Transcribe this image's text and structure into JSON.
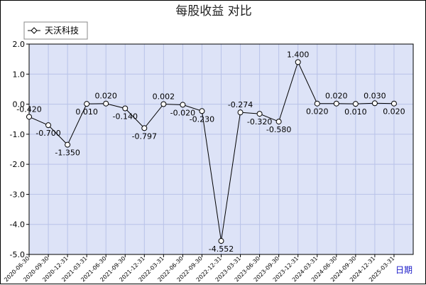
{
  "chart_data": {
    "type": "line",
    "title": "每股收益  对比",
    "xlabel": "日期",
    "ylabel": "",
    "ylim": [
      -5.0,
      2.0
    ],
    "yticks": [
      "2.0",
      "1.0",
      "0.0",
      "-1.0",
      "-2.0",
      "-3.0",
      "-4.0",
      "-5.0"
    ],
    "ytick_values": [
      2,
      1,
      0,
      -1,
      -2,
      -3,
      -4,
      -5
    ],
    "grid": true,
    "legend_position": "top-left",
    "colors": {
      "plot_bg": "#dde3f7",
      "grid": "#b8c2e8",
      "line": "#000000",
      "marker_fill": "#ffffff"
    },
    "x": [
      "2020-06-30",
      "2020-09-30",
      "2020-12-31",
      "2021-03-31",
      "2021-06-30",
      "2021-09-30",
      "2021-12-31",
      "2022-03-31",
      "2022-06-30",
      "2022-09-30",
      "2022-12-31",
      "2023-03-31",
      "2023-06-30",
      "2023-09-30",
      "2023-12-31",
      "2024-03-31",
      "2024-06-30",
      "2024-09-30",
      "2024-12-31",
      "2025-03-31"
    ],
    "series": [
      {
        "name": "天沃科技",
        "values": [
          -0.42,
          -0.7,
          -1.35,
          0.01,
          0.02,
          -0.14,
          -0.797,
          0.002,
          -0.02,
          -0.23,
          -4.552,
          -0.274,
          -0.32,
          -0.58,
          1.4,
          0.02,
          0.02,
          0.01,
          0.03,
          0.02
        ],
        "labels": [
          "-0.420",
          "-0.700",
          "-1.350",
          "0.010",
          "0.020",
          "-0.140",
          "-0.797",
          "0.002",
          "-0.020",
          "-0.230",
          "-4.552",
          "-0.274",
          "-0.320",
          "-0.580",
          "1.400",
          "0.020",
          "0.020",
          "0.010",
          "0.030",
          "0.020"
        ]
      }
    ]
  }
}
